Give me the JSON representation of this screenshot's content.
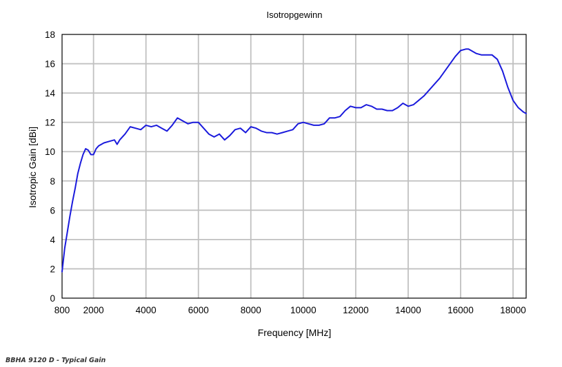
{
  "caption": "BBHA 9120 D - Typical Gain",
  "chart_data": {
    "type": "line",
    "title": "Isotropgewinn",
    "xlabel": "Frequency [MHz]",
    "ylabel": "Isotropic Gain [dBi]",
    "xlim": [
      800,
      18500
    ],
    "ylim": [
      0,
      18
    ],
    "x_ticks": [
      800,
      2000,
      4000,
      6000,
      8000,
      10000,
      12000,
      14000,
      16000,
      18000
    ],
    "x_grid": [
      2000,
      4000,
      6000,
      8000,
      10000,
      12000,
      14000,
      16000,
      18000
    ],
    "y_ticks": [
      0,
      2,
      4,
      6,
      8,
      10,
      12,
      14,
      16,
      18
    ],
    "grid": true,
    "line_color": "#1a1adc",
    "grid_color": "#c0c0c0",
    "series": [
      {
        "x": [
          800,
          900,
          1000,
          1100,
          1200,
          1300,
          1400,
          1500,
          1600,
          1700,
          1800,
          1900,
          2000,
          2100,
          2200,
          2400,
          2600,
          2800,
          2900,
          3000,
          3200,
          3400,
          3600,
          3800,
          4000,
          4200,
          4400,
          4600,
          4800,
          5000,
          5200,
          5400,
          5600,
          5800,
          6000,
          6200,
          6400,
          6600,
          6800,
          7000,
          7200,
          7400,
          7600,
          7800,
          8000,
          8200,
          8400,
          8600,
          8800,
          9000,
          9200,
          9400,
          9600,
          9800,
          10000,
          10200,
          10400,
          10600,
          10800,
          11000,
          11200,
          11400,
          11600,
          11800,
          12000,
          12200,
          12400,
          12600,
          12800,
          13000,
          13200,
          13400,
          13600,
          13800,
          14000,
          14200,
          14400,
          14600,
          14800,
          15000,
          15200,
          15400,
          15600,
          15800,
          16000,
          16200,
          16300,
          16400,
          16600,
          16800,
          17000,
          17200,
          17400,
          17600,
          17800,
          18000,
          18200,
          18400,
          18500
        ],
        "y": [
          1.8,
          3.4,
          4.5,
          5.6,
          6.6,
          7.5,
          8.5,
          9.2,
          9.8,
          10.2,
          10.1,
          9.8,
          9.8,
          10.2,
          10.4,
          10.6,
          10.7,
          10.8,
          10.5,
          10.8,
          11.2,
          11.7,
          11.6,
          11.5,
          11.8,
          11.7,
          11.8,
          11.6,
          11.4,
          11.8,
          12.3,
          12.1,
          11.9,
          12.0,
          12.0,
          11.6,
          11.2,
          11.0,
          11.2,
          10.8,
          11.1,
          11.5,
          11.6,
          11.3,
          11.7,
          11.6,
          11.4,
          11.3,
          11.3,
          11.2,
          11.3,
          11.4,
          11.5,
          11.9,
          12.0,
          11.9,
          11.8,
          11.8,
          11.9,
          12.3,
          12.3,
          12.4,
          12.8,
          13.1,
          13.0,
          13.0,
          13.2,
          13.1,
          12.9,
          12.9,
          12.8,
          12.8,
          13.0,
          13.3,
          13.1,
          13.2,
          13.5,
          13.8,
          14.2,
          14.6,
          15.0,
          15.5,
          16.0,
          16.5,
          16.9,
          17.0,
          17.0,
          16.9,
          16.7,
          16.6,
          16.6,
          16.6,
          16.3,
          15.5,
          14.4,
          13.5,
          13.0,
          12.7,
          12.6
        ]
      }
    ]
  }
}
